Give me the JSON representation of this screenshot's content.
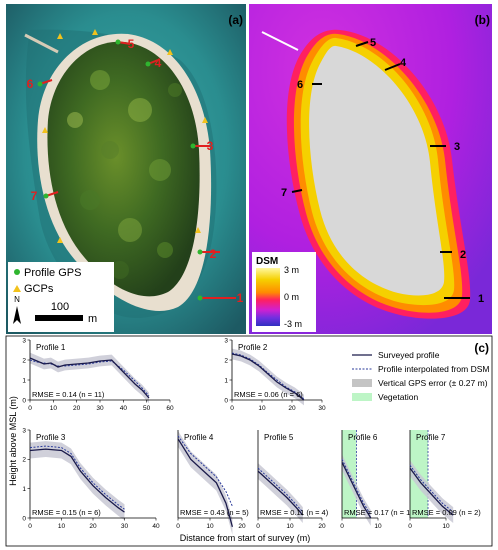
{
  "figure": {
    "panel_a": {
      "letter": "(a)",
      "profile_numbers": [
        "1",
        "2",
        "3",
        "4",
        "5",
        "6",
        "7"
      ],
      "legend": {
        "gps": "Profile GPS",
        "gcps": "GCPs"
      },
      "north": "N",
      "scale": {
        "value": "100",
        "unit": "m"
      },
      "colors": {
        "water": "#2a8d8f",
        "beach": "#e8dfcf",
        "forest": "#2f5a1e",
        "profile": "#e02020",
        "gps": "#2fb52f",
        "gcp": "#f2c21c"
      }
    },
    "panel_b": {
      "letter": "(b)",
      "profile_numbers": [
        "1",
        "2",
        "3",
        "4",
        "5",
        "6",
        "7"
      ],
      "dsm": {
        "title": "DSM",
        "top": "3 m",
        "mid": "0 m",
        "bottom": "-3 m"
      },
      "colors": {
        "sea": "#c020e0",
        "land": "#d8d8d8",
        "shore": "#f5d000",
        "ramp": [
          "#fff8a0",
          "#f5d000",
          "#ff8c00",
          "#ff2060",
          "#d020d0",
          "#7030e0",
          "#3030c0"
        ]
      }
    },
    "panel_c": {
      "letter": "(c)",
      "ylabel": "Height above MSL (m)",
      "xlabel": "Distance from start of survey (m)",
      "legend": {
        "surveyed": "Surveyed profile",
        "interpolated": "Profile interpolated from DSM",
        "error": "Vertical GPS error (± 0.27 m)",
        "vegetation": "Vegetation"
      }
    }
  },
  "chart_data": [
    {
      "type": "line",
      "title": "Profile 1",
      "annotation": "RMSE = 0.14 (n = 11)",
      "xlim": [
        0,
        60
      ],
      "ylim": [
        0,
        3
      ],
      "xticks": [
        "0",
        "10",
        "20",
        "30",
        "40",
        "50",
        "60"
      ],
      "yticks": [
        "0",
        "1",
        "2",
        "3"
      ],
      "surveyed": {
        "x": [
          0,
          3,
          6,
          9,
          12,
          15,
          20,
          25,
          30,
          35,
          40,
          45,
          48,
          51
        ],
        "y": [
          2.1,
          1.95,
          1.8,
          1.85,
          1.65,
          1.75,
          1.8,
          1.85,
          1.95,
          2.0,
          1.4,
          0.8,
          0.5,
          0.1
        ]
      },
      "interpolated": {
        "x": [
          0,
          3,
          6,
          9,
          12,
          15,
          20,
          25,
          30,
          35,
          40,
          45,
          48,
          51
        ],
        "y": [
          2.0,
          1.9,
          1.85,
          1.8,
          1.7,
          1.7,
          1.75,
          1.8,
          1.9,
          1.95,
          1.5,
          0.95,
          0.6,
          0.2
        ]
      }
    },
    {
      "type": "line",
      "title": "Profile 2",
      "annotation": "RMSE = 0.06 (n = 6)",
      "xlim": [
        0,
        30
      ],
      "ylim": [
        0,
        3
      ],
      "xticks": [
        "0",
        "10",
        "20",
        "30"
      ],
      "yticks": [
        "0",
        "1",
        "2",
        "3"
      ],
      "surveyed": {
        "x": [
          0,
          3,
          6,
          9,
          12,
          15,
          18,
          21,
          24
        ],
        "y": [
          2.3,
          2.2,
          2.0,
          1.7,
          1.3,
          0.9,
          0.6,
          0.35,
          0.0
        ]
      },
      "interpolated": {
        "x": [
          0,
          3,
          6,
          9,
          12,
          15,
          18,
          21,
          24
        ],
        "y": [
          2.35,
          2.25,
          2.05,
          1.75,
          1.35,
          1.0,
          0.65,
          0.4,
          0.05
        ]
      }
    },
    {
      "type": "line",
      "title": "Profile 3",
      "annotation": "RMSE = 0.15 (n = 6)",
      "xlim": [
        0,
        40
      ],
      "ylim": [
        0,
        3
      ],
      "xticks": [
        "0",
        "10",
        "20",
        "30",
        "40"
      ],
      "yticks": [
        "0",
        "1",
        "2",
        "3"
      ],
      "surveyed": {
        "x": [
          0,
          5,
          10,
          13,
          16,
          20,
          24,
          28,
          30
        ],
        "y": [
          2.3,
          2.35,
          2.3,
          2.1,
          1.6,
          1.1,
          0.7,
          0.35,
          0.2
        ]
      },
      "interpolated": {
        "x": [
          0,
          5,
          10,
          13,
          16,
          20,
          24,
          28,
          30
        ],
        "y": [
          2.4,
          2.45,
          2.4,
          2.2,
          1.7,
          1.2,
          0.8,
          0.45,
          0.3
        ]
      }
    },
    {
      "type": "line",
      "title": "Profile 4",
      "annotation": "RMSE = 0.43 (n = 5)",
      "xlim": [
        0,
        20
      ],
      "ylim": [
        0,
        3
      ],
      "xticks": [
        "0",
        "10",
        "20"
      ],
      "yticks": [],
      "surveyed": {
        "x": [
          0,
          4,
          8,
          12,
          15,
          17
        ],
        "y": [
          2.7,
          2.0,
          1.6,
          1.2,
          0.5,
          -0.3
        ]
      },
      "interpolated": {
        "x": [
          0,
          4,
          8,
          12,
          15,
          17
        ],
        "y": [
          2.8,
          2.2,
          1.8,
          1.4,
          0.9,
          0.4
        ]
      }
    },
    {
      "type": "line",
      "title": "Profile 5",
      "annotation": "RMSE = 0.11 (n = 4)",
      "xlim": [
        0,
        20
      ],
      "ylim": [
        0,
        3
      ],
      "xticks": [
        "0",
        "10",
        "20"
      ],
      "yticks": [],
      "surveyed": {
        "x": [
          0,
          3,
          6,
          9,
          12,
          14
        ],
        "y": [
          1.6,
          1.3,
          1.0,
          0.7,
          0.35,
          0.1
        ]
      },
      "interpolated": {
        "x": [
          0,
          3,
          6,
          9,
          12,
          14
        ],
        "y": [
          1.7,
          1.4,
          1.1,
          0.8,
          0.45,
          0.2
        ]
      }
    },
    {
      "type": "line",
      "title": "Profile 6",
      "annotation": "RMSE = 0.17 (n = 1)",
      "xlim": [
        0,
        10
      ],
      "ylim": [
        0,
        3
      ],
      "xticks": [
        "0",
        "10"
      ],
      "yticks": [],
      "vegetation_until": 4,
      "surveyed": {
        "x": [
          0,
          2,
          4,
          6,
          8
        ],
        "y": [
          1.9,
          1.4,
          0.9,
          0.4,
          0.0
        ]
      },
      "interpolated": {
        "x": [
          0,
          2,
          4,
          6,
          8
        ],
        "y": [
          2.0,
          1.5,
          1.0,
          0.5,
          0.1
        ]
      }
    },
    {
      "type": "line",
      "title": "Profile 7",
      "annotation": "RMSE = 0.09 (n = 2)",
      "xlim": [
        0,
        10
      ],
      "ylim": [
        0,
        3
      ],
      "xticks": [
        "0",
        "10"
      ],
      "yticks": [],
      "vegetation_until": 5,
      "surveyed": {
        "x": [
          0,
          3,
          6,
          9,
          12
        ],
        "y": [
          1.7,
          1.2,
          0.8,
          0.4,
          0.1
        ]
      },
      "interpolated": {
        "x": [
          0,
          3,
          6,
          9,
          12
        ],
        "y": [
          1.8,
          1.3,
          0.9,
          0.5,
          0.2
        ]
      }
    }
  ]
}
